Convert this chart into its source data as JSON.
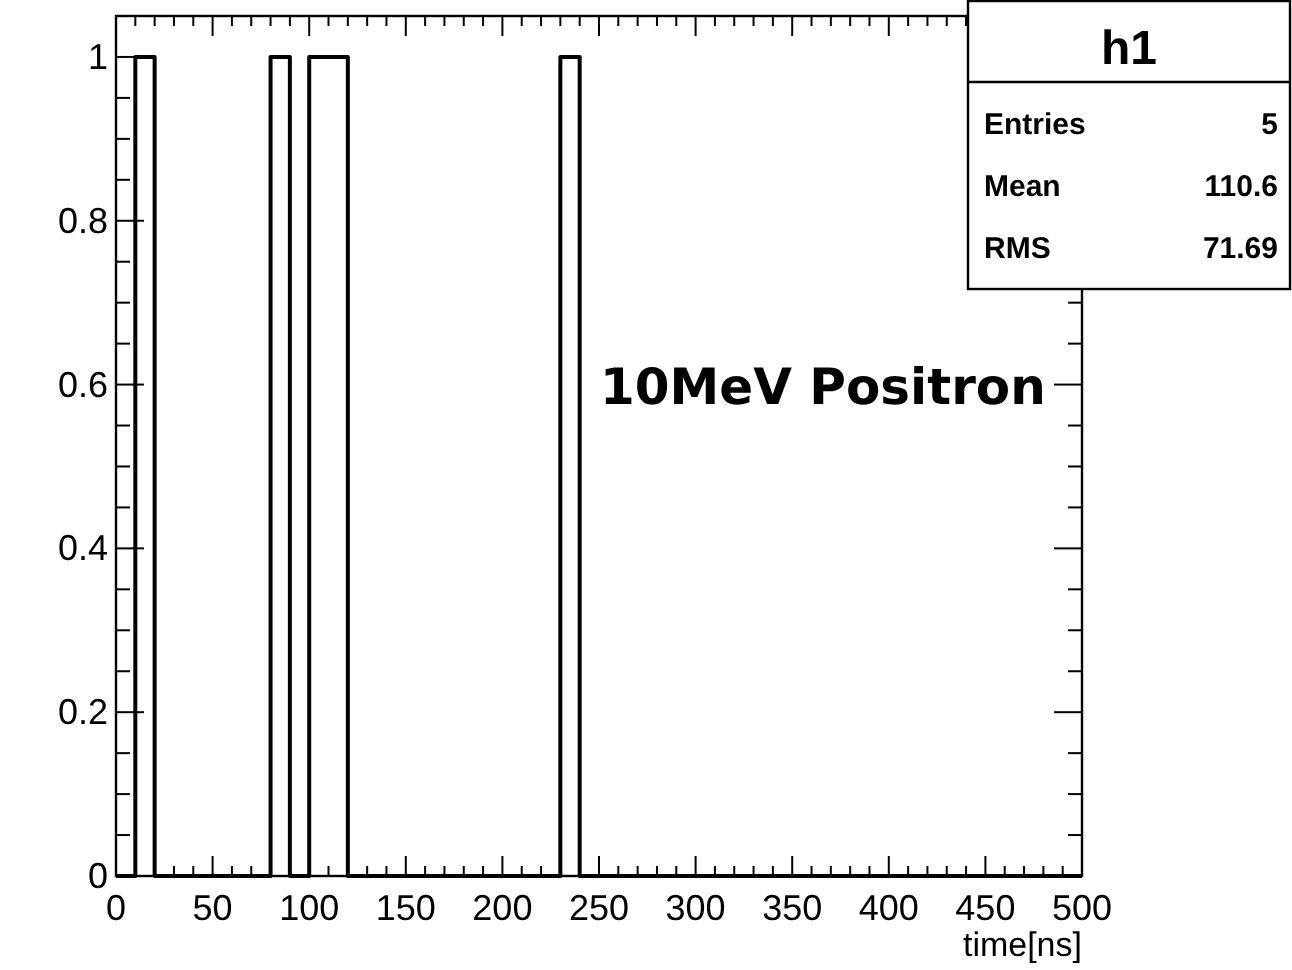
{
  "chart_data": {
    "type": "histogram",
    "xlabel": "time[ns]",
    "bins": [
      0,
      10,
      20,
      30,
      40,
      50,
      60,
      70,
      80,
      90,
      100,
      110,
      120,
      130,
      140,
      150,
      160,
      170,
      180,
      190,
      200,
      210,
      220,
      230,
      240,
      250,
      260,
      270,
      280,
      290,
      300,
      310,
      320,
      330,
      340,
      350,
      360,
      370,
      380,
      390,
      400,
      410,
      420,
      430,
      440,
      450,
      460,
      470,
      480,
      490,
      500
    ],
    "values": [
      0,
      1,
      0,
      0,
      0,
      0,
      0,
      0,
      1,
      0,
      1,
      1,
      0,
      0,
      0,
      0,
      0,
      0,
      0,
      0,
      0,
      0,
      0,
      1,
      0,
      0,
      0,
      0,
      0,
      0,
      0,
      0,
      0,
      0,
      0,
      0,
      0,
      0,
      0,
      0,
      0,
      0,
      0,
      0,
      0,
      0,
      0,
      0,
      0,
      0
    ],
    "color": "#000000",
    "xlim": [
      0,
      500
    ],
    "xticks": [
      0,
      50,
      100,
      150,
      200,
      250,
      300,
      350,
      400,
      450,
      500
    ],
    "ylim": [
      0,
      1.05
    ],
    "yticks": [
      0,
      0.2,
      0.4,
      0.6,
      0.8,
      1
    ],
    "grid": false,
    "annotations": [
      "h1",
      "Entries",
      "5",
      "Mean",
      "110.6",
      "RMS",
      "71.69",
      "10MeV Positron"
    ]
  }
}
